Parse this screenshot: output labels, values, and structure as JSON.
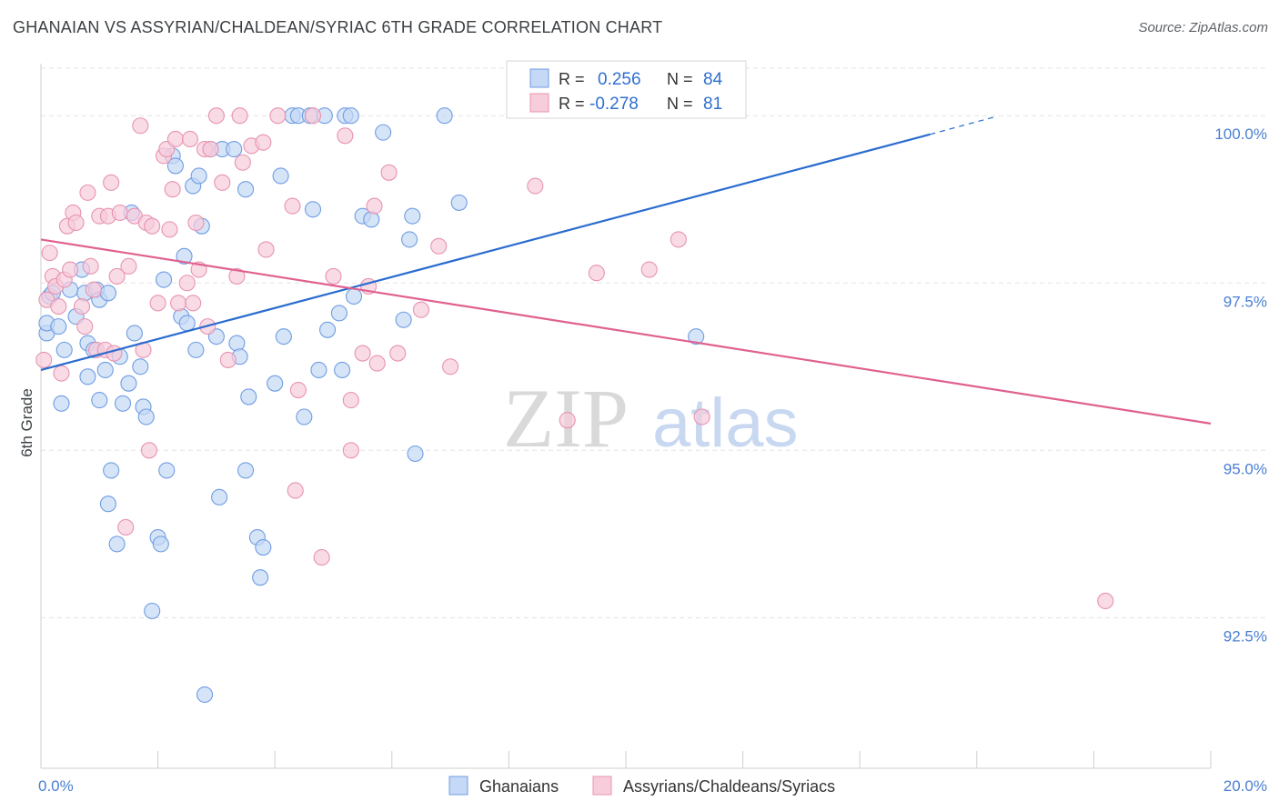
{
  "title": "GHANAIAN VS ASSYRIAN/CHALDEAN/SYRIAC 6TH GRADE CORRELATION CHART",
  "source": "Source: ZipAtlas.com",
  "watermark": {
    "part1": "ZIP",
    "part2": "atlas"
  },
  "chart_data": {
    "type": "scatter",
    "ylabel": "6th Grade",
    "xlim": [
      0,
      20
    ],
    "ylim": [
      90.25,
      100.75
    ],
    "x_ticks": [
      {
        "value": 0,
        "label": "0.0%"
      },
      {
        "value": 20,
        "label": "20.0%"
      }
    ],
    "x_minor_ticks": [
      0,
      2,
      4,
      6,
      8,
      10,
      12,
      14,
      16,
      18,
      20
    ],
    "y_ticks": [
      {
        "value": 100,
        "label": "100.0%"
      },
      {
        "value": 97.5,
        "label": "97.5%"
      },
      {
        "value": 95,
        "label": "95.0%"
      },
      {
        "value": 92.5,
        "label": "92.5%"
      }
    ],
    "grid": "horizontal dashed",
    "legend": {
      "placement": "top-center",
      "rows": [
        {
          "r_label": "R =",
          "r_value": "0.256",
          "n_label": "N =",
          "n_value": "84"
        },
        {
          "r_label": "R =",
          "r_value": "-0.278",
          "n_label": "N =",
          "n_value": "81"
        }
      ]
    },
    "series": [
      {
        "name": "Ghanaians",
        "color": "#6f9de3",
        "fill": "#c5d8f5",
        "trend": {
          "x": [
            0,
            15.2,
            16.3
          ],
          "y": [
            96.2,
            99.72,
            99.98
          ],
          "dashed_from": 15.2
        },
        "points": [
          [
            0.1,
            96.75
          ],
          [
            0.1,
            96.9
          ],
          [
            0.15,
            97.3
          ],
          [
            0.2,
            97.35
          ],
          [
            0.3,
            96.85
          ],
          [
            0.35,
            95.7
          ],
          [
            0.4,
            96.5
          ],
          [
            0.5,
            97.4
          ],
          [
            0.6,
            97.0
          ],
          [
            0.7,
            97.7
          ],
          [
            0.75,
            97.35
          ],
          [
            0.8,
            96.1
          ],
          [
            0.8,
            96.6
          ],
          [
            0.9,
            96.5
          ],
          [
            0.95,
            97.4
          ],
          [
            1.0,
            97.25
          ],
          [
            1.0,
            95.75
          ],
          [
            1.1,
            96.2
          ],
          [
            1.15,
            97.35
          ],
          [
            1.15,
            94.2
          ],
          [
            1.2,
            94.7
          ],
          [
            1.3,
            93.6
          ],
          [
            1.35,
            96.4
          ],
          [
            1.4,
            95.7
          ],
          [
            1.5,
            96.0
          ],
          [
            1.55,
            98.55
          ],
          [
            1.6,
            96.75
          ],
          [
            1.7,
            96.25
          ],
          [
            1.75,
            95.65
          ],
          [
            1.8,
            95.5
          ],
          [
            1.9,
            92.6
          ],
          [
            2.0,
            93.7
          ],
          [
            2.05,
            93.6
          ],
          [
            2.1,
            97.55
          ],
          [
            2.15,
            94.7
          ],
          [
            2.25,
            99.4
          ],
          [
            2.3,
            99.25
          ],
          [
            2.4,
            97.0
          ],
          [
            2.45,
            97.9
          ],
          [
            2.5,
            96.9
          ],
          [
            2.6,
            98.95
          ],
          [
            2.65,
            96.5
          ],
          [
            2.7,
            99.1
          ],
          [
            2.75,
            98.35
          ],
          [
            2.8,
            91.35
          ],
          [
            2.9,
            99.5
          ],
          [
            3.0,
            96.7
          ],
          [
            3.05,
            94.3
          ],
          [
            3.1,
            99.5
          ],
          [
            3.3,
            99.5
          ],
          [
            3.35,
            96.6
          ],
          [
            3.4,
            96.4
          ],
          [
            3.5,
            98.9
          ],
          [
            3.5,
            94.7
          ],
          [
            3.55,
            95.8
          ],
          [
            3.7,
            93.7
          ],
          [
            3.75,
            93.1
          ],
          [
            3.8,
            93.55
          ],
          [
            4.0,
            96.0
          ],
          [
            4.1,
            99.1
          ],
          [
            4.15,
            96.7
          ],
          [
            4.3,
            100.0
          ],
          [
            4.4,
            100.0
          ],
          [
            4.5,
            95.5
          ],
          [
            4.6,
            100.0
          ],
          [
            4.65,
            98.6
          ],
          [
            4.75,
            96.2
          ],
          [
            4.85,
            100.0
          ],
          [
            4.9,
            96.8
          ],
          [
            5.1,
            97.05
          ],
          [
            5.15,
            96.2
          ],
          [
            5.2,
            100.0
          ],
          [
            5.3,
            100.0
          ],
          [
            5.35,
            97.3
          ],
          [
            5.5,
            98.5
          ],
          [
            5.65,
            98.45
          ],
          [
            5.85,
            99.75
          ],
          [
            6.2,
            96.95
          ],
          [
            6.3,
            98.15
          ],
          [
            6.35,
            98.5
          ],
          [
            6.4,
            94.95
          ],
          [
            6.9,
            100.0
          ],
          [
            7.15,
            98.7
          ],
          [
            11.2,
            96.7
          ]
        ]
      },
      {
        "name": "Assyrians/Chaldeans/Syriacs",
        "color": "#e893b1",
        "fill": "#f7ccdb",
        "trend": {
          "x": [
            0,
            20
          ],
          "y": [
            98.15,
            95.4
          ]
        },
        "points": [
          [
            0.05,
            96.35
          ],
          [
            0.1,
            97.25
          ],
          [
            0.15,
            97.95
          ],
          [
            0.2,
            97.6
          ],
          [
            0.25,
            97.45
          ],
          [
            0.3,
            97.15
          ],
          [
            0.35,
            96.15
          ],
          [
            0.4,
            97.55
          ],
          [
            0.45,
            98.35
          ],
          [
            0.5,
            97.7
          ],
          [
            0.55,
            98.55
          ],
          [
            0.6,
            98.4
          ],
          [
            0.7,
            97.15
          ],
          [
            0.75,
            96.85
          ],
          [
            0.8,
            98.85
          ],
          [
            0.85,
            97.75
          ],
          [
            0.9,
            97.4
          ],
          [
            0.95,
            96.5
          ],
          [
            1.0,
            98.5
          ],
          [
            1.1,
            96.5
          ],
          [
            1.15,
            98.5
          ],
          [
            1.2,
            99.0
          ],
          [
            1.25,
            96.45
          ],
          [
            1.3,
            97.6
          ],
          [
            1.35,
            98.55
          ],
          [
            1.45,
            93.85
          ],
          [
            1.5,
            97.75
          ],
          [
            1.6,
            98.5
          ],
          [
            1.7,
            99.85
          ],
          [
            1.75,
            96.5
          ],
          [
            1.8,
            98.4
          ],
          [
            1.85,
            95.0
          ],
          [
            1.9,
            98.35
          ],
          [
            2.0,
            97.2
          ],
          [
            2.1,
            99.4
          ],
          [
            2.15,
            99.5
          ],
          [
            2.2,
            98.3
          ],
          [
            2.25,
            98.9
          ],
          [
            2.3,
            99.65
          ],
          [
            2.35,
            97.2
          ],
          [
            2.5,
            97.5
          ],
          [
            2.55,
            99.65
          ],
          [
            2.6,
            97.2
          ],
          [
            2.65,
            98.4
          ],
          [
            2.7,
            97.7
          ],
          [
            2.8,
            99.5
          ],
          [
            2.85,
            96.85
          ],
          [
            2.9,
            99.5
          ],
          [
            3.0,
            100.0
          ],
          [
            3.1,
            99.0
          ],
          [
            3.2,
            96.35
          ],
          [
            3.35,
            97.6
          ],
          [
            3.4,
            100.0
          ],
          [
            3.45,
            99.3
          ],
          [
            3.6,
            99.55
          ],
          [
            3.8,
            99.6
          ],
          [
            3.85,
            98.0
          ],
          [
            4.05,
            100.0
          ],
          [
            4.3,
            98.65
          ],
          [
            4.35,
            94.4
          ],
          [
            4.4,
            95.9
          ],
          [
            4.65,
            100.0
          ],
          [
            4.8,
            93.4
          ],
          [
            5.0,
            97.6
          ],
          [
            5.2,
            99.7
          ],
          [
            5.3,
            95.0
          ],
          [
            5.3,
            95.75
          ],
          [
            5.5,
            96.45
          ],
          [
            5.6,
            97.45
          ],
          [
            5.7,
            98.65
          ],
          [
            5.75,
            96.3
          ],
          [
            5.95,
            99.15
          ],
          [
            6.1,
            96.45
          ],
          [
            6.5,
            97.1
          ],
          [
            6.8,
            98.05
          ],
          [
            7.0,
            96.25
          ],
          [
            8.45,
            98.95
          ],
          [
            9.0,
            95.45
          ],
          [
            9.5,
            97.65
          ],
          [
            10.4,
            97.7
          ],
          [
            10.9,
            98.15
          ],
          [
            11.3,
            95.5
          ],
          [
            18.2,
            92.75
          ]
        ]
      }
    ]
  }
}
